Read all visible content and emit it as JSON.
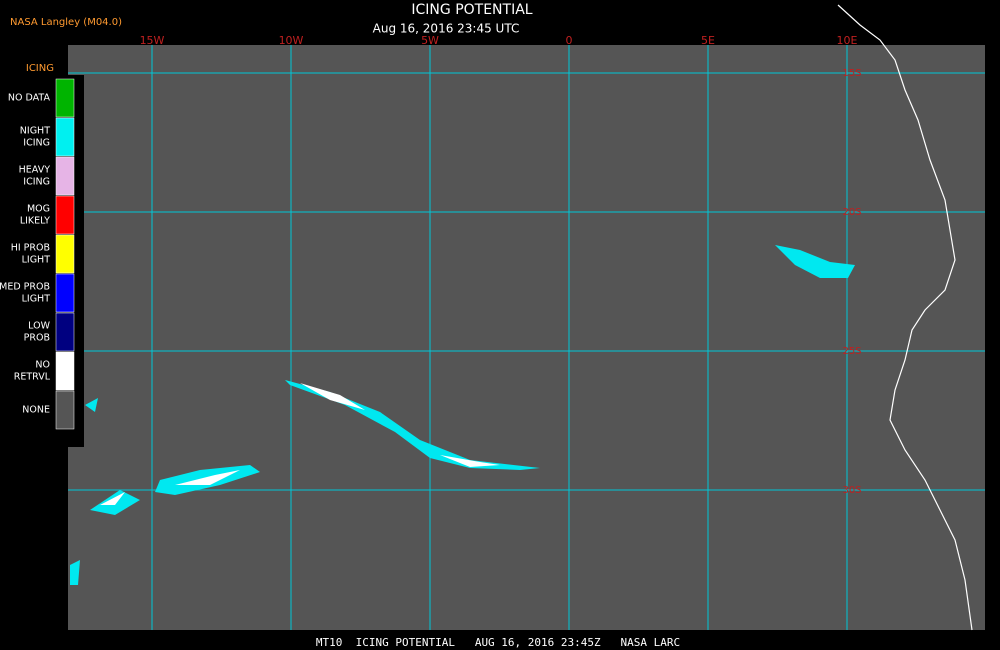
{
  "header": {
    "source": "NASA Langley (M04.0)",
    "title": "ICING POTENTIAL",
    "time": "Aug 16, 2016 23:45 UTC"
  },
  "map": {
    "longitudes": [
      "15W",
      "10W",
      "5W",
      "0",
      "5E",
      "10E"
    ],
    "latitudes": [
      "15S",
      "20S",
      "25S",
      "30S"
    ]
  },
  "legend": {
    "title": "ICING",
    "items": [
      {
        "lines": [
          "NO DATA"
        ],
        "color": "#00b400"
      },
      {
        "lines": [
          "NIGHT",
          "ICING"
        ],
        "color": "#00f0f0"
      },
      {
        "lines": [
          "HEAVY",
          "ICING"
        ],
        "color": "#e6b4e6"
      },
      {
        "lines": [
          "MOG",
          "LIKELY"
        ],
        "color": "#ff0000"
      },
      {
        "lines": [
          "HI PROB",
          "LIGHT"
        ],
        "color": "#ffff00"
      },
      {
        "lines": [
          "MED PROB",
          "LIGHT"
        ],
        "color": "#0000ff"
      },
      {
        "lines": [
          "LOW",
          "PROB"
        ],
        "color": "#000080"
      },
      {
        "lines": [
          "NO",
          "RETRVL"
        ],
        "color": "#ffffff"
      },
      {
        "lines": [
          "NONE"
        ],
        "color": "#555555"
      }
    ]
  },
  "footer": "MT10  ICING POTENTIAL   AUG 16, 2016 23:45Z   NASA LARC"
}
